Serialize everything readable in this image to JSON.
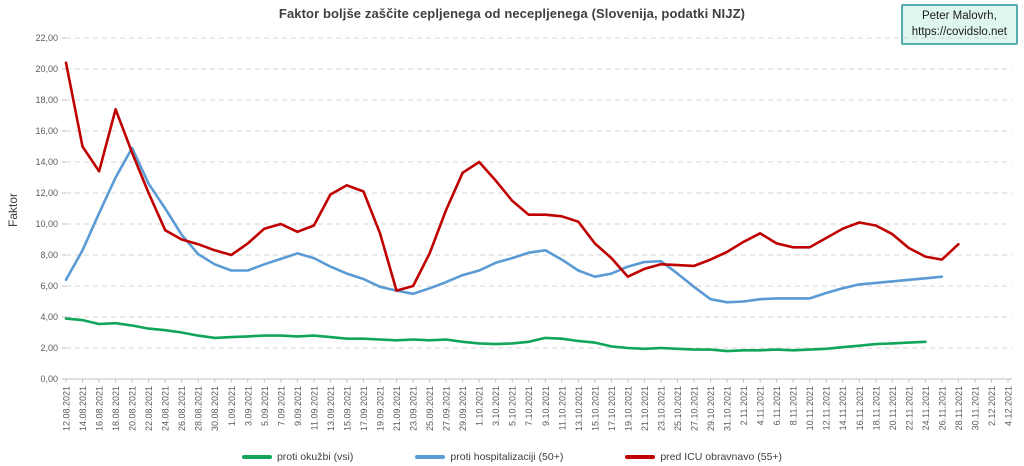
{
  "attribution": {
    "line1": "Peter Malovrh,",
    "line2": "https://covidslo.net"
  },
  "chart_data": {
    "type": "line",
    "title": "Faktor boljše zaščite cepljenega od necepljenega (Slovenija, podatki NIJZ)",
    "xlabel": "",
    "ylabel": "Faktor",
    "ylim": [
      0,
      22
    ],
    "y_tick_step": 2,
    "y_tick_labels": [
      "0,00",
      "2,00",
      "4,00",
      "6,00",
      "8,00",
      "10,00",
      "12,00",
      "14,00",
      "16,00",
      "18,00",
      "20,00",
      "22,00"
    ],
    "grid": "horizontal-dashed",
    "legend_position": "bottom",
    "categories": [
      "12.08.2021",
      "14.08.2021",
      "16.08.2021",
      "18.08.2021",
      "20.08.2021",
      "22.08.2021",
      "24.08.2021",
      "26.08.2021",
      "28.08.2021",
      "30.08.2021",
      "1.09.2021",
      "3.09.2021",
      "5.09.2021",
      "7.09.2021",
      "9.09.2021",
      "11.09.2021",
      "13.09.2021",
      "15.09.2021",
      "17.09.2021",
      "19.09.2021",
      "21.09.2021",
      "23.09.2021",
      "25.09.2021",
      "27.09.2021",
      "29.09.2021",
      "1.10.2021",
      "3.10.2021",
      "5.10.2021",
      "7.10.2021",
      "9.10.2021",
      "11.10.2021",
      "13.10.2021",
      "15.10.2021",
      "17.10.2021",
      "19.10.2021",
      "21.10.2021",
      "23.10.2021",
      "25.10.2021",
      "27.10.2021",
      "29.10.2021",
      "31.10.2021",
      "2.11.2021",
      "4.11.2021",
      "6.11.2021",
      "8.11.2021",
      "10.11.2021",
      "12.11.2021",
      "14.11.2021",
      "16.11.2021",
      "18.11.2021",
      "20.11.2021",
      "22.11.2021",
      "24.11.2021",
      "26.11.2021",
      "28.11.2021",
      "30.11.2021",
      "2.12.2021",
      "4.12.2021"
    ],
    "series": [
      {
        "name": "proti okužbi (vsi)",
        "color": "#10A55A",
        "values": [
          3.9,
          3.8,
          3.55,
          3.6,
          3.45,
          3.25,
          3.15,
          3.0,
          2.8,
          2.65,
          2.7,
          2.75,
          2.8,
          2.8,
          2.75,
          2.8,
          2.7,
          2.6,
          2.6,
          2.55,
          2.5,
          2.55,
          2.5,
          2.55,
          2.4,
          2.3,
          2.25,
          2.3,
          2.4,
          2.65,
          2.6,
          2.45,
          2.35,
          2.1,
          2.0,
          1.95,
          2.0,
          1.95,
          1.9,
          1.9,
          1.8,
          1.85,
          1.85,
          1.9,
          1.85,
          1.9,
          1.95,
          2.05,
          2.15,
          2.25,
          2.3,
          2.35,
          2.4,
          null,
          null,
          null,
          null,
          null
        ]
      },
      {
        "name": "proti hospitalizaciji (50+)",
        "color": "#5B9BD5",
        "values": [
          6.4,
          8.3,
          10.7,
          13.0,
          14.9,
          12.6,
          11.0,
          9.3,
          8.05,
          7.4,
          7.0,
          7.0,
          7.4,
          7.75,
          8.1,
          7.8,
          7.25,
          6.8,
          6.45,
          5.95,
          5.7,
          5.5,
          5.85,
          6.25,
          6.7,
          7.0,
          7.5,
          7.8,
          8.15,
          8.3,
          7.7,
          7.0,
          6.6,
          6.8,
          7.25,
          7.55,
          7.6,
          6.8,
          5.95,
          5.15,
          4.95,
          5.0,
          5.15,
          5.2,
          5.2,
          5.2,
          5.55,
          5.85,
          6.1,
          6.2,
          6.3,
          6.4,
          6.5,
          6.6,
          null,
          null,
          null,
          null
        ]
      },
      {
        "name": "pred ICU obravnavo (55+)",
        "color": "#C00000",
        "values": [
          20.4,
          15.0,
          13.4,
          17.4,
          14.6,
          12.0,
          9.6,
          9.0,
          8.7,
          8.3,
          8.0,
          8.75,
          9.7,
          10.0,
          9.5,
          9.9,
          11.9,
          12.5,
          12.1,
          9.4,
          5.7,
          6.0,
          8.1,
          10.9,
          13.3,
          14.0,
          12.8,
          11.5,
          10.6,
          10.6,
          10.5,
          10.15,
          8.75,
          7.8,
          6.6,
          7.1,
          7.4,
          7.35,
          7.3,
          7.7,
          8.2,
          8.85,
          9.4,
          8.75,
          8.5,
          8.5,
          9.1,
          9.7,
          10.1,
          9.9,
          9.35,
          8.45,
          7.9,
          7.7,
          8.7,
          null,
          null,
          null
        ]
      }
    ]
  }
}
